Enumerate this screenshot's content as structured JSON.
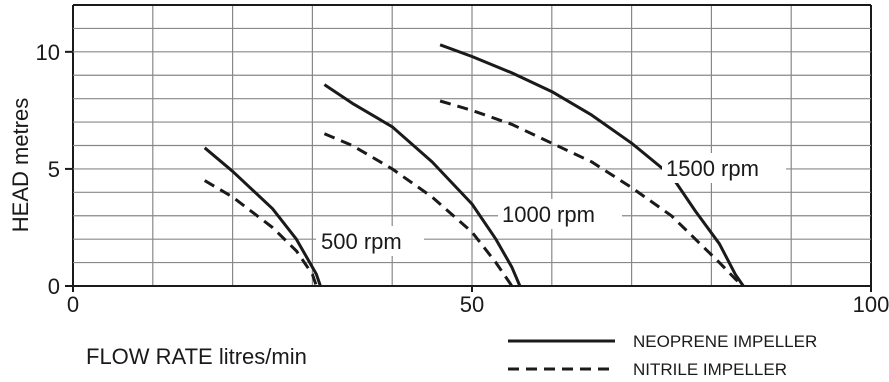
{
  "chart_data": {
    "type": "line",
    "xlabel": "FLOW RATE litres/min",
    "ylabel": "HEAD metres",
    "xlim": [
      0,
      100
    ],
    "ylim": [
      0,
      12
    ],
    "x_ticks": [
      0,
      50,
      100
    ],
    "y_ticks": [
      0,
      5,
      10
    ],
    "grid": true,
    "legend_position": "bottom-right",
    "legend": [
      {
        "label": "NEOPRENE IMPELLER",
        "style": "solid"
      },
      {
        "label": "NITRILE IMPELLER",
        "style": "dashed"
      }
    ],
    "annotations": [
      "500 rpm",
      "1000 rpm",
      "1500 rpm"
    ],
    "series": [
      {
        "group": "500 rpm",
        "impeller": "NEOPRENE IMPELLER",
        "style": "solid",
        "points": [
          [
            16.5,
            5.9
          ],
          [
            20,
            4.9
          ],
          [
            25,
            3.3
          ],
          [
            28,
            2.0
          ],
          [
            30.5,
            0.5
          ],
          [
            31,
            0
          ]
        ]
      },
      {
        "group": "500 rpm",
        "impeller": "NITRILE IMPELLER",
        "style": "dashed",
        "points": [
          [
            16.5,
            4.5
          ],
          [
            20,
            3.8
          ],
          [
            25,
            2.5
          ],
          [
            28,
            1.5
          ],
          [
            30,
            0.5
          ],
          [
            30.5,
            0
          ]
        ]
      },
      {
        "group": "1000 rpm",
        "impeller": "NEOPRENE IMPELLER",
        "style": "solid",
        "points": [
          [
            31.5,
            8.6
          ],
          [
            35,
            7.8
          ],
          [
            40,
            6.8
          ],
          [
            45,
            5.3
          ],
          [
            50,
            3.5
          ],
          [
            53,
            2.0
          ],
          [
            55,
            0.8
          ],
          [
            56,
            0
          ]
        ]
      },
      {
        "group": "1000 rpm",
        "impeller": "NITRILE IMPELLER",
        "style": "dashed",
        "points": [
          [
            31.5,
            6.5
          ],
          [
            35,
            6.0
          ],
          [
            40,
            5.0
          ],
          [
            45,
            3.8
          ],
          [
            50,
            2.3
          ],
          [
            53,
            1.0
          ],
          [
            55,
            0
          ]
        ]
      },
      {
        "group": "1500 rpm",
        "impeller": "NEOPRENE IMPELLER",
        "style": "solid",
        "points": [
          [
            46,
            10.3
          ],
          [
            50,
            9.8
          ],
          [
            55,
            9.1
          ],
          [
            60,
            8.3
          ],
          [
            65,
            7.3
          ],
          [
            70,
            6.1
          ],
          [
            75,
            4.7
          ],
          [
            78,
            3.2
          ],
          [
            81,
            1.8
          ],
          [
            83,
            0.5
          ],
          [
            84,
            0
          ]
        ]
      },
      {
        "group": "1500 rpm",
        "impeller": "NITRILE IMPELLER",
        "style": "dashed",
        "points": [
          [
            46,
            7.9
          ],
          [
            50,
            7.5
          ],
          [
            55,
            6.9
          ],
          [
            60,
            6.1
          ],
          [
            65,
            5.3
          ],
          [
            70,
            4.2
          ],
          [
            75,
            3.0
          ],
          [
            78,
            2.0
          ],
          [
            81,
            1.0
          ],
          [
            83,
            0.3
          ],
          [
            84,
            0
          ]
        ]
      }
    ]
  },
  "colors": {
    "line": "#1a1a1a",
    "grid": "#888888"
  }
}
